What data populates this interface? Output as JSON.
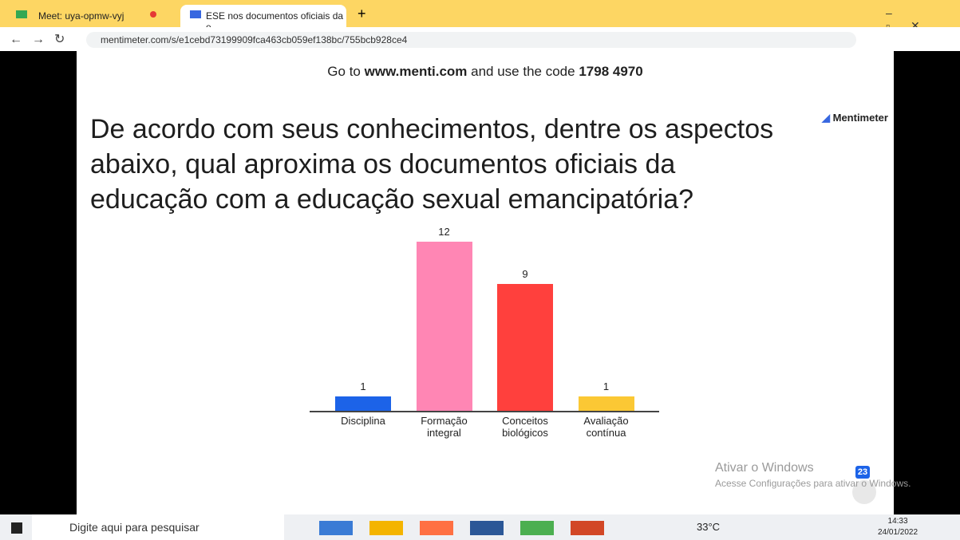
{
  "browser": {
    "tabs": [
      {
        "title": "Meet: uya-opmw-vyj"
      },
      {
        "title": "ESE nos documentos oficiais da e"
      }
    ],
    "url": "mentimeter.com/s/e1cebd73199909fca463cb059ef138bc/755bcb928ce4"
  },
  "slide": {
    "join": {
      "prefix": "Go to",
      "site": "www.menti.com",
      "middle": "and use the code",
      "code": "1798 4970"
    },
    "brand": "Mentimeter",
    "question": [
      "De acordo com seus conhecimentos, dentre os aspectos",
      "abaixo, qual aproxima os documentos oficiais da",
      "educação com a educação sexual emancipatória?"
    ],
    "chart": {
      "type": "bar",
      "categories": [
        "Disciplina",
        "Formação integral",
        "Conceitos biológicos",
        "Avaliação contínua"
      ],
      "values": [
        1,
        12,
        9,
        1
      ],
      "colors": [
        "#1c63e8",
        "#ff86b4",
        "#ff403d",
        "#fbc834"
      ]
    },
    "badge": "23"
  },
  "watermark": {
    "title": "Ativar o Windows",
    "subtitle": "Acesse Configurações para ativar o Windows."
  },
  "taskbar": {
    "search": "Digite aqui para pesquisar",
    "weather": "33°C",
    "time": "14:33",
    "date": "24/01/2022"
  }
}
